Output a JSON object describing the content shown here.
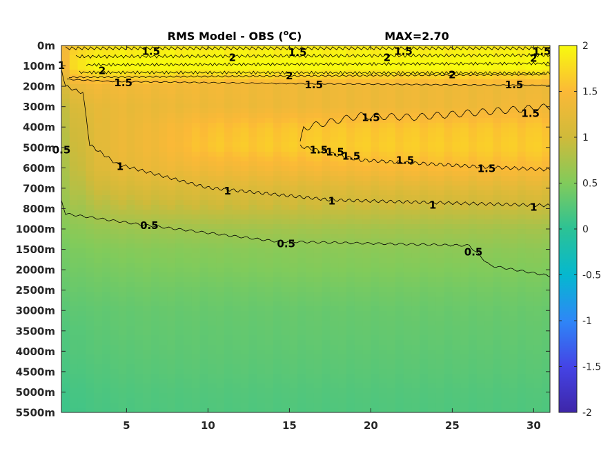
{
  "chart_data": {
    "type": "heatmap",
    "title": "RMS Model - OBS (",
    "title_unit_sup": "o",
    "title_unit_tail": "C)",
    "max_label": "MAX=2.70",
    "x_range": [
      1,
      31
    ],
    "x_ticks": [
      5,
      10,
      15,
      20,
      25,
      30
    ],
    "y_tick_labels": [
      "0m",
      "100m",
      "200m",
      "300m",
      "400m",
      "500m",
      "600m",
      "700m",
      "800m",
      "1000m",
      "1500m",
      "2000m",
      "2500m",
      "3000m",
      "3500m",
      "4000m",
      "4500m",
      "5000m",
      "5500m"
    ],
    "colorbar": {
      "range": [
        -2,
        2
      ],
      "ticks": [
        "2",
        "1.5",
        "1",
        "0.5",
        "0",
        "-0.5",
        "-1",
        "-1.5",
        "-2"
      ],
      "tick_values": [
        2,
        1.5,
        1,
        0.5,
        0,
        -0.5,
        -1,
        -1.5,
        -2
      ],
      "colormap": "parula",
      "stops": [
        "#3e26a8",
        "#4444e6",
        "#2e87f7",
        "#05b8cf",
        "#2cc295",
        "#81cb5b",
        "#d0ba3a",
        "#fbb937",
        "#f8fa0e"
      ]
    },
    "depth_profile": [
      {
        "level": 0,
        "values": [
          1.3,
          1.7,
          1.8,
          1.85,
          1.85,
          1.85,
          1.85,
          1.85
        ]
      },
      {
        "level": 1,
        "values": [
          1.3,
          1.9,
          2.05,
          2.05,
          2.05,
          2.05,
          2.05,
          2.05
        ]
      },
      {
        "level": 2,
        "values": [
          1.05,
          1.35,
          1.4,
          1.4,
          1.4,
          1.35,
          1.35,
          1.35
        ]
      },
      {
        "level": 3,
        "values": [
          0.85,
          1.15,
          1.3,
          1.3,
          1.35,
          1.35,
          1.35,
          1.4
        ]
      },
      {
        "level": 4,
        "values": [
          0.8,
          1.05,
          1.3,
          1.35,
          1.55,
          1.6,
          1.6,
          1.6
        ]
      },
      {
        "level": 5,
        "values": [
          0.75,
          1.0,
          1.3,
          1.35,
          1.6,
          1.65,
          1.65,
          1.65
        ]
      },
      {
        "level": 6,
        "values": [
          0.7,
          0.95,
          1.25,
          1.3,
          1.4,
          1.45,
          1.5,
          1.5
        ]
      },
      {
        "level": 7,
        "values": [
          0.65,
          0.85,
          1.05,
          1.1,
          1.15,
          1.15,
          1.2,
          1.2
        ]
      },
      {
        "level": 8,
        "values": [
          0.6,
          0.7,
          0.85,
          0.9,
          0.95,
          0.95,
          0.95,
          0.95
        ]
      },
      {
        "level": 9,
        "values": [
          0.5,
          0.58,
          0.65,
          0.68,
          0.7,
          0.72,
          0.72,
          0.72
        ]
      },
      {
        "level": 10,
        "values": [
          0.42,
          0.48,
          0.52,
          0.54,
          0.55,
          0.56,
          0.58,
          0.58
        ]
      },
      {
        "level": 11,
        "values": [
          0.38,
          0.42,
          0.45,
          0.47,
          0.48,
          0.5,
          0.5,
          0.5
        ]
      },
      {
        "level": 12,
        "values": [
          0.32,
          0.36,
          0.38,
          0.4,
          0.4,
          0.42,
          0.42,
          0.42
        ]
      },
      {
        "level": 13,
        "values": [
          0.25,
          0.3,
          0.32,
          0.34,
          0.35,
          0.35,
          0.36,
          0.36
        ]
      },
      {
        "level": 14,
        "values": [
          0.2,
          0.26,
          0.3,
          0.32,
          0.32,
          0.33,
          0.33,
          0.33
        ]
      },
      {
        "level": 15,
        "values": [
          0.18,
          0.24,
          0.27,
          0.29,
          0.3,
          0.3,
          0.3,
          0.3
        ]
      },
      {
        "level": 16,
        "values": [
          0.15,
          0.2,
          0.24,
          0.26,
          0.27,
          0.27,
          0.27,
          0.27
        ]
      },
      {
        "level": 17,
        "values": [
          0.1,
          0.16,
          0.2,
          0.22,
          0.23,
          0.23,
          0.23,
          0.23
        ]
      },
      {
        "level": 18,
        "values": [
          0.08,
          0.14,
          0.18,
          0.2,
          0.21,
          0.21,
          0.21,
          0.21
        ]
      }
    ],
    "profile_x": [
      1,
      2,
      4,
      6,
      10,
      16,
      24,
      31
    ],
    "contour_labels": [
      {
        "text": "1.5",
        "x": 6.5,
        "level": 0.25
      },
      {
        "text": "2",
        "x": 11.5,
        "level": 0.55
      },
      {
        "text": "1.5",
        "x": 15.5,
        "level": 0.3
      },
      {
        "text": "2",
        "x": 21.0,
        "level": 0.55
      },
      {
        "text": "1.5",
        "x": 22.0,
        "level": 0.25
      },
      {
        "text": "2",
        "x": 30.0,
        "level": 0.6
      },
      {
        "text": "1.5",
        "x": 30.5,
        "level": 0.25
      },
      {
        "text": "2",
        "x": 3.5,
        "level": 1.2
      },
      {
        "text": "2",
        "x": 15.0,
        "level": 1.45
      },
      {
        "text": "2",
        "x": 25.0,
        "level": 1.4
      },
      {
        "text": "1.5",
        "x": 4.8,
        "level": 1.8
      },
      {
        "text": "1.5",
        "x": 16.5,
        "level": 1.9
      },
      {
        "text": "1.5",
        "x": 28.8,
        "level": 1.9
      },
      {
        "text": "1.5",
        "x": 20.0,
        "level": 3.5
      },
      {
        "text": "1.5",
        "x": 29.8,
        "level": 3.3
      },
      {
        "text": "1.5",
        "x": 16.8,
        "level": 5.1
      },
      {
        "text": "1.5",
        "x": 17.8,
        "level": 5.2
      },
      {
        "text": "1.5",
        "x": 18.8,
        "level": 5.4
      },
      {
        "text": "1.5",
        "x": 22.1,
        "level": 5.6
      },
      {
        "text": "1.5",
        "x": 27.1,
        "level": 6.0
      },
      {
        "text": "1",
        "x": 4.6,
        "level": 5.9
      },
      {
        "text": "1",
        "x": 11.2,
        "level": 7.1
      },
      {
        "text": "1",
        "x": 17.6,
        "level": 7.6
      },
      {
        "text": "1",
        "x": 23.8,
        "level": 7.8
      },
      {
        "text": "1",
        "x": 30.0,
        "level": 7.9
      },
      {
        "text": "0.5",
        "x": 6.4,
        "level": 8.8
      },
      {
        "text": "0.5",
        "x": 14.8,
        "level": 9.7
      },
      {
        "text": "0.5",
        "x": 26.3,
        "level": 10.1
      },
      {
        "text": "1",
        "x": 1.0,
        "level": 0.95
      },
      {
        "text": "0.5",
        "x": 1.0,
        "level": 5.1
      }
    ]
  }
}
